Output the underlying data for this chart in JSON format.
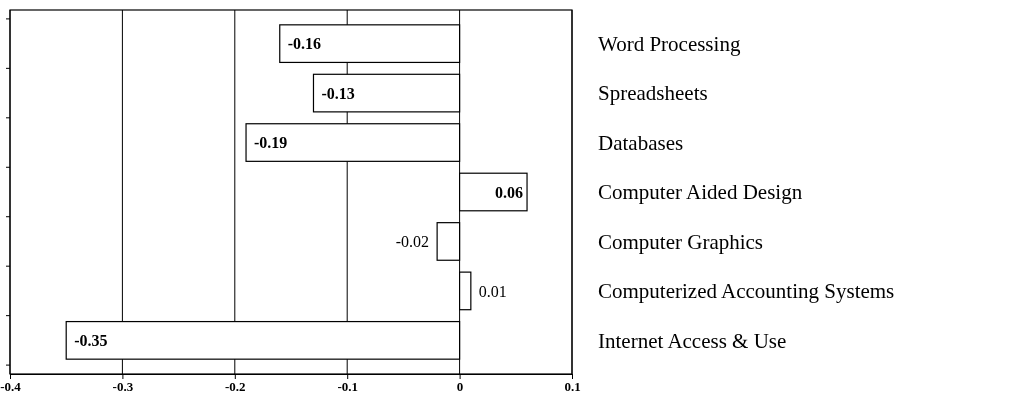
{
  "chart_data": {
    "type": "bar",
    "orientation": "horizontal",
    "categories": [
      "Word Processing",
      "Spreadsheets",
      "Databases",
      "Computer Aided Design",
      "Computer Graphics",
      "Computerized Accounting Systems",
      "Internet Access & Use"
    ],
    "values": [
      -0.16,
      -0.13,
      -0.19,
      0.06,
      -0.02,
      0.01,
      -0.35
    ],
    "color": "#ffffff",
    "xlim": [
      -0.4,
      0.1
    ],
    "xticks": [
      -0.4,
      -0.3,
      -0.2,
      -0.1,
      0,
      0.1
    ],
    "grid": "x",
    "data_labels": true
  }
}
